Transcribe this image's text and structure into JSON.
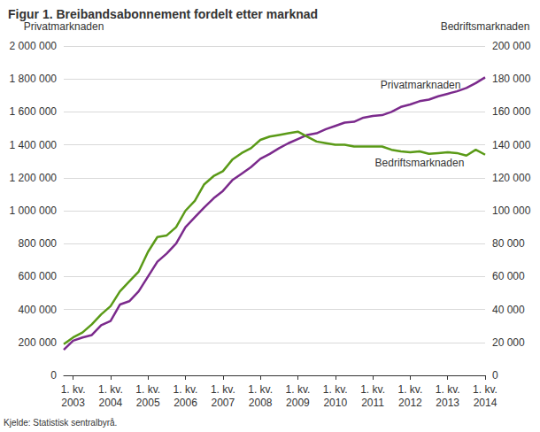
{
  "chart_data": {
    "type": "line",
    "title": "Figur 1. Breibandsabonnement fordelt etter marknad",
    "y_label": "Privatmarknaden",
    "y2_label": "Bedriftsmarknaden",
    "source": "Kjelde: Statistisk sentralbyrå.",
    "categories": [
      null,
      "1. kv.\n2003",
      null,
      null,
      null,
      "1. kv.\n2004",
      null,
      null,
      null,
      "1. kv.\n2005",
      null,
      null,
      null,
      "1. kv.\n2006",
      null,
      null,
      null,
      "1. kv.\n2007",
      null,
      null,
      null,
      "1. kv.\n2008",
      null,
      null,
      null,
      "1. kv.\n2009",
      null,
      null,
      null,
      "1. kv.\n2010",
      null,
      null,
      null,
      "1. kv.\n2011",
      null,
      null,
      null,
      "1. kv.\n2012",
      null,
      null,
      null,
      "1. kv.\n2013",
      null,
      null,
      null,
      "1. kv.\n2014"
    ],
    "series": [
      {
        "name": "Privatmarknaden",
        "color": "#7b2a8c",
        "axis": "y",
        "values": [
          155000,
          210000,
          230000,
          245000,
          305000,
          330000,
          430000,
          450000,
          510000,
          600000,
          690000,
          740000,
          800000,
          900000,
          960000,
          1020000,
          1075000,
          1120000,
          1185000,
          1225000,
          1265000,
          1315000,
          1345000,
          1380000,
          1410000,
          1435000,
          1460000,
          1470000,
          1495000,
          1515000,
          1535000,
          1540000,
          1565000,
          1575000,
          1580000,
          1600000,
          1630000,
          1645000,
          1665000,
          1675000,
          1695000,
          1710000,
          1725000,
          1745000,
          1775000,
          1810000
        ]
      },
      {
        "name": "Bedriftsmarknaden",
        "color": "#5a9a17",
        "axis": "y2",
        "values": [
          19000,
          23000,
          26000,
          31000,
          37000,
          42000,
          51000,
          57000,
          63000,
          75000,
          84000,
          85000,
          90000,
          100000,
          106000,
          116000,
          121000,
          124000,
          131000,
          135000,
          138000,
          143000,
          145000,
          146000,
          147000,
          148000,
          145000,
          142000,
          141000,
          140000,
          140000,
          139000,
          139000,
          139000,
          139000,
          137000,
          136000,
          135500,
          136000,
          134500,
          135000,
          135500,
          135000,
          133500,
          137000,
          134000
        ]
      }
    ],
    "ylim": [
      0,
      2000000
    ],
    "yticks": [
      0,
      {
        "value": 200000,
        "label": "200 000"
      },
      {
        "value": 400000,
        "label": "400 000"
      },
      {
        "value": 600000,
        "label": "600 000"
      },
      {
        "value": 800000,
        "label": "800 000"
      },
      {
        "value": 1000000,
        "label": "1 000 000"
      },
      {
        "value": 1200000,
        "label": "1 200 000"
      },
      {
        "value": 1400000,
        "label": "1 400 000"
      },
      {
        "value": 1600000,
        "label": "1 600 000"
      },
      {
        "value": 1800000,
        "label": "1 800 000"
      },
      {
        "value": 2000000,
        "label": "2 000 000"
      }
    ],
    "y2lim": [
      0,
      200000
    ],
    "y2ticks": [
      0,
      {
        "value": 20000,
        "label": "20 000"
      },
      {
        "value": 40000,
        "label": "40 000"
      },
      {
        "value": 60000,
        "label": "60 000"
      },
      {
        "value": 80000,
        "label": "80 000"
      },
      {
        "value": 100000,
        "label": "100 000"
      },
      {
        "value": 120000,
        "label": "120 000"
      },
      {
        "value": 140000,
        "label": "140 000"
      },
      {
        "value": 160000,
        "label": "160 000"
      },
      {
        "value": 180000,
        "label": "180 000"
      },
      {
        "value": 200000,
        "label": "200 000"
      }
    ],
    "grid": true
  }
}
